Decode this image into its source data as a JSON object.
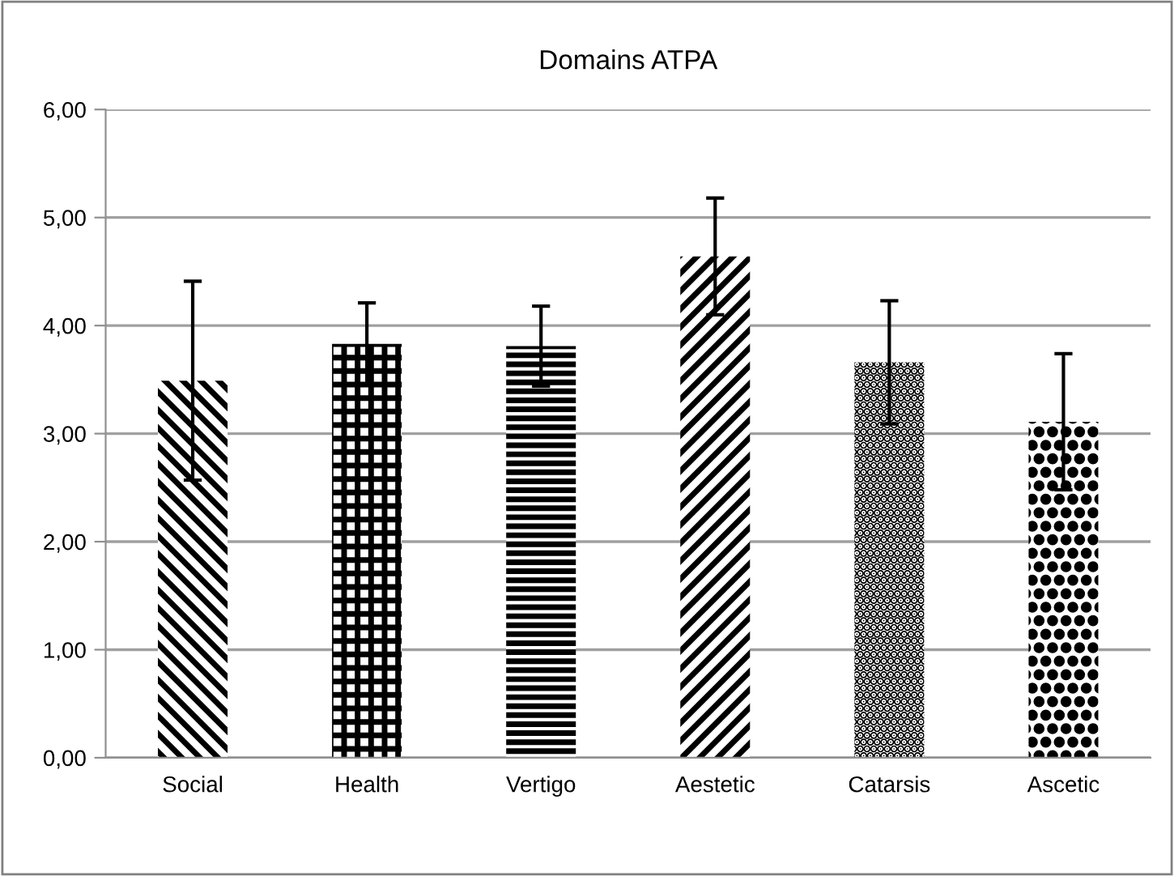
{
  "chart_data": {
    "type": "bar",
    "title": "Domains ATPA",
    "categories": [
      "Social",
      "Health",
      "Vertigo",
      "Aestetic",
      "Catarsis",
      "Ascetic"
    ],
    "values": [
      3.49,
      3.83,
      3.81,
      4.64,
      3.66,
      3.11
    ],
    "errors": [
      0.92,
      0.38,
      0.37,
      0.54,
      0.57,
      0.63
    ],
    "color": "#000000",
    "ylim": [
      0,
      6
    ],
    "yticks": [
      {
        "value": 0,
        "label": "0,00"
      },
      {
        "value": 1,
        "label": "1,00"
      },
      {
        "value": 2,
        "label": "2,00"
      },
      {
        "value": 3,
        "label": "3,00"
      },
      {
        "value": 4,
        "label": "4,00"
      },
      {
        "value": 5,
        "label": "5,00"
      },
      {
        "value": 6,
        "label": "6,00"
      }
    ],
    "grid": "y",
    "legend": false
  }
}
